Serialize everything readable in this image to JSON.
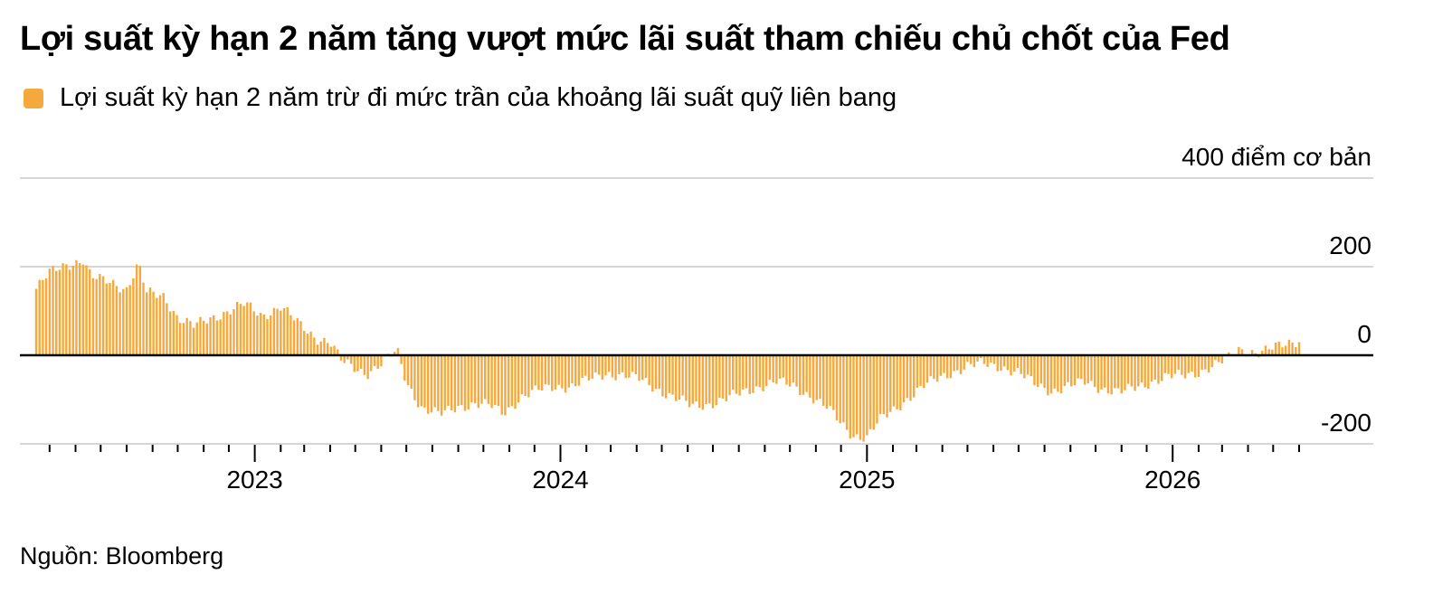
{
  "title": "Lợi suất kỳ hạn 2 năm tăng vượt mức lãi suất tham chiếu chủ chốt của Fed",
  "source": "Nguồn: Bloomberg",
  "colors": {
    "bar": "#f5a83c",
    "grid": "#d6d6d6",
    "zero": "#000000"
  },
  "chart_data": {
    "type": "bar",
    "series": [
      {
        "name": "Lợi suất kỳ hạn 2 năm trừ đi mức trần của khoảng lãi suất quỹ liên bang"
      }
    ],
    "y_unit_label": "400 điểm cơ bản",
    "ylim": [
      -200,
      400
    ],
    "y_ticks": [
      400,
      200,
      0,
      -200
    ],
    "y_tick_labels": [
      "400 điểm cơ bản",
      "200",
      "0",
      "-200"
    ],
    "xlim": [
      "2022-04-15",
      "2026-06-01"
    ],
    "x_tick_labels": [
      "2023",
      "2024",
      "2025",
      "2026"
    ],
    "x_tick_dates": [
      "2023-01-01",
      "2024-01-01",
      "2025-01-01",
      "2026-01-01"
    ],
    "grid": true,
    "legend_position": "top-left",
    "data": [
      [
        "2022-04-15",
        150
      ],
      [
        "2022-05-01",
        185
      ],
      [
        "2022-05-20",
        205
      ],
      [
        "2022-06-10",
        215
      ],
      [
        "2022-06-20",
        175
      ],
      [
        "2022-07-15",
        165
      ],
      [
        "2022-08-01",
        150
      ],
      [
        "2022-08-15",
        205
      ],
      [
        "2022-08-25",
        140
      ],
      [
        "2022-09-15",
        135
      ],
      [
        "2022-10-01",
        85
      ],
      [
        "2022-10-20",
        65
      ],
      [
        "2022-11-10",
        85
      ],
      [
        "2022-12-01",
        100
      ],
      [
        "2022-12-20",
        115
      ],
      [
        "2023-01-10",
        90
      ],
      [
        "2023-02-01",
        110
      ],
      [
        "2023-02-20",
        75
      ],
      [
        "2023-03-15",
        40
      ],
      [
        "2023-04-01",
        30
      ],
      [
        "2023-04-15",
        -15
      ],
      [
        "2023-05-01",
        -30
      ],
      [
        "2023-05-15",
        -40
      ],
      [
        "2023-06-01",
        -20
      ],
      [
        "2023-06-20",
        10
      ],
      [
        "2023-07-01",
        -60
      ],
      [
        "2023-07-20",
        -120
      ],
      [
        "2023-08-10",
        -135
      ],
      [
        "2023-09-01",
        -115
      ],
      [
        "2023-09-20",
        -110
      ],
      [
        "2023-10-10",
        -115
      ],
      [
        "2023-10-25",
        -130
      ],
      [
        "2023-11-15",
        -95
      ],
      [
        "2023-12-05",
        -80
      ],
      [
        "2023-12-25",
        -70
      ],
      [
        "2024-01-15",
        -70
      ],
      [
        "2024-02-05",
        -55
      ],
      [
        "2024-02-25",
        -40
      ],
      [
        "2024-03-15",
        -45
      ],
      [
        "2024-04-05",
        -55
      ],
      [
        "2024-04-25",
        -75
      ],
      [
        "2024-05-15",
        -95
      ],
      [
        "2024-06-05",
        -115
      ],
      [
        "2024-06-25",
        -110
      ],
      [
        "2024-07-15",
        -100
      ],
      [
        "2024-08-05",
        -85
      ],
      [
        "2024-08-25",
        -70
      ],
      [
        "2024-09-15",
        -60
      ],
      [
        "2024-10-05",
        -70
      ],
      [
        "2024-10-25",
        -90
      ],
      [
        "2024-11-15",
        -120
      ],
      [
        "2024-12-01",
        -155
      ],
      [
        "2024-12-15",
        -180
      ],
      [
        "2025-01-01",
        -185
      ],
      [
        "2025-01-15",
        -150
      ],
      [
        "2025-02-01",
        -125
      ],
      [
        "2025-02-20",
        -95
      ],
      [
        "2025-03-10",
        -70
      ],
      [
        "2025-03-25",
        -55
      ],
      [
        "2025-04-10",
        -40
      ],
      [
        "2025-05-01",
        -25
      ],
      [
        "2025-05-20",
        -20
      ],
      [
        "2025-06-10",
        -25
      ],
      [
        "2025-07-01",
        -40
      ],
      [
        "2025-07-20",
        -65
      ],
      [
        "2025-08-10",
        -80
      ],
      [
        "2025-09-01",
        -70
      ],
      [
        "2025-09-20",
        -60
      ],
      [
        "2025-10-10",
        -75
      ],
      [
        "2025-10-30",
        -85
      ],
      [
        "2025-11-15",
        -75
      ],
      [
        "2025-12-05",
        -60
      ],
      [
        "2025-12-25",
        -50
      ],
      [
        "2026-01-15",
        -45
      ],
      [
        "2026-02-05",
        -35
      ],
      [
        "2026-02-25",
        -20
      ],
      [
        "2026-03-10",
        -5
      ],
      [
        "2026-03-20",
        15
      ],
      [
        "2026-04-01",
        10
      ],
      [
        "2026-04-15",
        5
      ],
      [
        "2026-05-01",
        15
      ],
      [
        "2026-05-20",
        30
      ],
      [
        "2026-06-01",
        35
      ]
    ]
  }
}
